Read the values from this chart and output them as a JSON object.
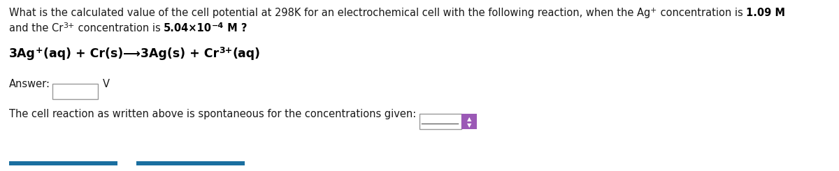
{
  "background_color": "#ffffff",
  "text_color": "#1a1a1a",
  "bold_color": "#000000",
  "font_size_main": 10.5,
  "font_size_reaction": 12.5,
  "font_size_super": 8,
  "button_color": "#9b59b6",
  "blue_bar_color": "#1a6fa0",
  "line1_pre": "What is the calculated value of the cell potential at 298K for an electrochemical cell with the following reaction, when the Ag",
  "line1_super": "+",
  "line1_post": " concentration is ",
  "line1_bold": "1.09 M",
  "line2_pre": "and the Cr",
  "line2_super": "3+",
  "line2_post": " concentration is ",
  "line2_bold": "5.04×10",
  "line2_exp": "−4",
  "line2_end": " M ?",
  "rxn_pre": "3Ag",
  "rxn_super1": "+",
  "rxn_mid": "(aq) + Cr(s)",
  "rxn_arrow": "⟶",
  "rxn_post": "3Ag(s) + Cr",
  "rxn_super2": "3+",
  "rxn_end": "(aq)",
  "answer_label": "Answer:",
  "answer_unit": "V",
  "spont_text": "The cell reaction as written above is spontaneous for the concentrations given:"
}
